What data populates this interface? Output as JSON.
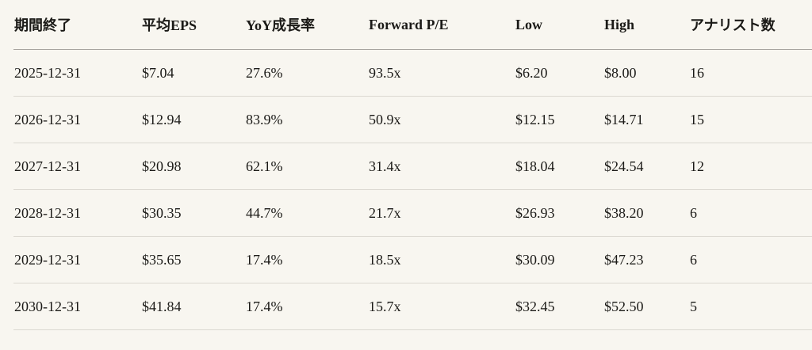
{
  "chart_data": {
    "type": "table",
    "title": "",
    "columns": [
      "期間終了",
      "平均EPS",
      "YoY成長率",
      "Forward P/E",
      "Low",
      "High",
      "アナリスト数"
    ],
    "rows": [
      [
        "2025-12-31",
        "$7.04",
        "27.6%",
        "93.5x",
        "$6.20",
        "$8.00",
        "16"
      ],
      [
        "2026-12-31",
        "$12.94",
        "83.9%",
        "50.9x",
        "$12.15",
        "$14.71",
        "15"
      ],
      [
        "2027-12-31",
        "$20.98",
        "62.1%",
        "31.4x",
        "$18.04",
        "$24.54",
        "12"
      ],
      [
        "2028-12-31",
        "$30.35",
        "44.7%",
        "21.7x",
        "$26.93",
        "$38.20",
        "6"
      ],
      [
        "2029-12-31",
        "$35.65",
        "17.4%",
        "18.5x",
        "$30.09",
        "$47.23",
        "6"
      ],
      [
        "2030-12-31",
        "$41.84",
        "17.4%",
        "15.7x",
        "$32.45",
        "$52.50",
        "5"
      ]
    ]
  },
  "colors": {
    "background": "#f8f6f0",
    "text": "#1b1a17",
    "header_rule": "#a8a5a0",
    "row_rule": "#dbd8d1"
  }
}
